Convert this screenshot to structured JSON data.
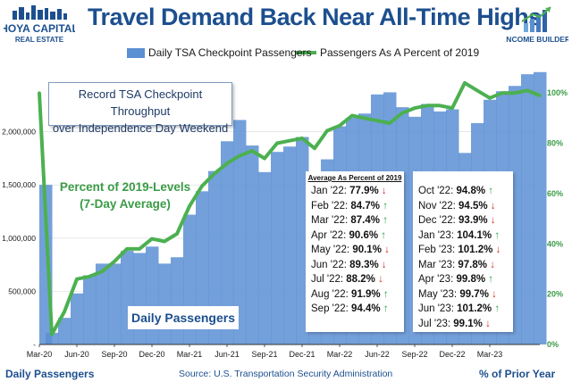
{
  "header": {
    "title": "Travel Demand Back Near All-Time Highs",
    "logo_left_line1": "HOYA CAPITAL",
    "logo_left_line2": "REAL ESTATE",
    "logo_right_text": "INCOME BUILDER"
  },
  "legend": {
    "bar_label": "Daily TSA Checkpoint Passengers",
    "line_label": "Passengers As A Percent of 2019"
  },
  "annotations": {
    "box_line1": "Record TSA Checkpoint Throughput",
    "box_line2": "over Independence Day Weekend",
    "pct_line1": "Percent of 2019-Levels",
    "pct_line2": "(7-Day Average)",
    "daily_label": "Daily Passengers"
  },
  "table": {
    "header": "Average As Percent of 2019",
    "left": [
      {
        "month": "Jan '22:",
        "value": "77.9%",
        "dir": "down"
      },
      {
        "month": "Feb '22:",
        "value": "84.7%",
        "dir": "up"
      },
      {
        "month": "Mar '22:",
        "value": "87.4%",
        "dir": "up"
      },
      {
        "month": "Apr '22:",
        "value": "90.6%",
        "dir": "up"
      },
      {
        "month": "May '22:",
        "value": "90.1%",
        "dir": "down"
      },
      {
        "month": "Jun '22:",
        "value": "89.3%",
        "dir": "down"
      },
      {
        "month": "Jul '22:",
        "value": "88.2%",
        "dir": "down"
      },
      {
        "month": "Aug '22:",
        "value": "91.9%",
        "dir": "up"
      },
      {
        "month": "Sep '22:",
        "value": "94.4%",
        "dir": "up"
      }
    ],
    "right": [
      {
        "month": "Oct '22:",
        "value": "94.8%",
        "dir": "up"
      },
      {
        "month": "Nov '22:",
        "value": "94.5%",
        "dir": "down"
      },
      {
        "month": "Dec '22:",
        "value": "93.9%",
        "dir": "down"
      },
      {
        "month": "Jan '23:",
        "value": "104.1%",
        "dir": "up"
      },
      {
        "month": "Feb '23:",
        "value": "101.2%",
        "dir": "down"
      },
      {
        "month": "Mar '23:",
        "value": "97.8%",
        "dir": "down"
      },
      {
        "month": "Apr '23:",
        "value": "99.8%",
        "dir": "up"
      },
      {
        "month": "May '23:",
        "value": "99.7%",
        "dir": "down"
      },
      {
        "month": "Jun '23:",
        "value": "101.2%",
        "dir": "up"
      },
      {
        "month": "Jul '23:",
        "value": "99.1%",
        "dir": "down"
      }
    ]
  },
  "footer": {
    "left_label": "Daily Passengers",
    "source": "Source: U.S. Transportation Security Administration",
    "right_label": "% of Prior Year"
  },
  "colors": {
    "bar": "#5b8fd3",
    "line": "#4cb050",
    "title": "#1c4f8f",
    "axis_text": "#1a1a1a",
    "right_axis_text": "#3a9b46",
    "up_arrow": "#2ea043",
    "down_arrow": "#d62b1f"
  },
  "chart_data": {
    "type": "bar",
    "x_tick_labels": [
      "Mar-20",
      "Jun-20",
      "Sep-20",
      "Dec-20",
      "Mar-21",
      "Jun-21",
      "Sep-21",
      "Dec-21",
      "Mar-22",
      "Jun-22",
      "Sep-22",
      "Dec-22",
      "Mar-23"
    ],
    "y_left_ticks": [
      0,
      500000,
      1000000,
      1500000,
      2000000
    ],
    "y_left_tick_labels": [
      "-",
      "500,000",
      "1,000,000",
      "1,500,000",
      "2,000,000"
    ],
    "y_left_lim": [
      0,
      2600000
    ],
    "y_right_ticks": [
      0,
      20,
      40,
      60,
      80,
      100
    ],
    "y_right_tick_labels": [
      "0%",
      "20%",
      "40%",
      "60%",
      "80%",
      "100%"
    ],
    "y_right_lim": [
      0,
      110
    ],
    "x": [
      "Mar-20",
      "Apr-20",
      "May-20",
      "Jun-20",
      "Jul-20",
      "Aug-20",
      "Sep-20",
      "Oct-20",
      "Nov-20",
      "Dec-20",
      "Jan-21",
      "Feb-21",
      "Mar-21",
      "Apr-21",
      "May-21",
      "Jun-21",
      "Jul-21",
      "Aug-21",
      "Sep-21",
      "Oct-21",
      "Nov-21",
      "Dec-21",
      "Jan-22",
      "Feb-22",
      "Mar-22",
      "Apr-22",
      "May-22",
      "Jun-22",
      "Jul-22",
      "Aug-22",
      "Sep-22",
      "Oct-22",
      "Nov-22",
      "Dec-22",
      "Jan-23",
      "Feb-23",
      "Mar-23",
      "Apr-23",
      "May-23",
      "Jun-23",
      "Jul-23"
    ],
    "series": [
      {
        "name": "Daily TSA Checkpoint Passengers",
        "values": [
          1500000,
          110000,
          250000,
          480000,
          650000,
          760000,
          760000,
          880000,
          860000,
          920000,
          760000,
          820000,
          1220000,
          1440000,
          1630000,
          1910000,
          2110000,
          1870000,
          1620000,
          1810000,
          1860000,
          1950000,
          1580000,
          1740000,
          2050000,
          2130000,
          2170000,
          2350000,
          2370000,
          2230000,
          2140000,
          2260000,
          2190000,
          2210000,
          1800000,
          2080000,
          2300000,
          2380000,
          2430000,
          2540000,
          2560000
        ]
      },
      {
        "name": "Passengers As A Percent of 2019",
        "values": [
          100,
          4,
          13,
          26,
          27,
          29,
          33,
          38,
          38,
          42,
          41,
          44,
          55,
          63,
          68,
          72,
          75,
          77,
          74,
          80,
          81,
          82,
          78,
          85,
          87,
          91,
          90,
          89,
          88,
          92,
          94,
          95,
          95,
          94,
          104,
          101,
          98,
          100,
          100,
          101,
          99
        ]
      }
    ]
  }
}
